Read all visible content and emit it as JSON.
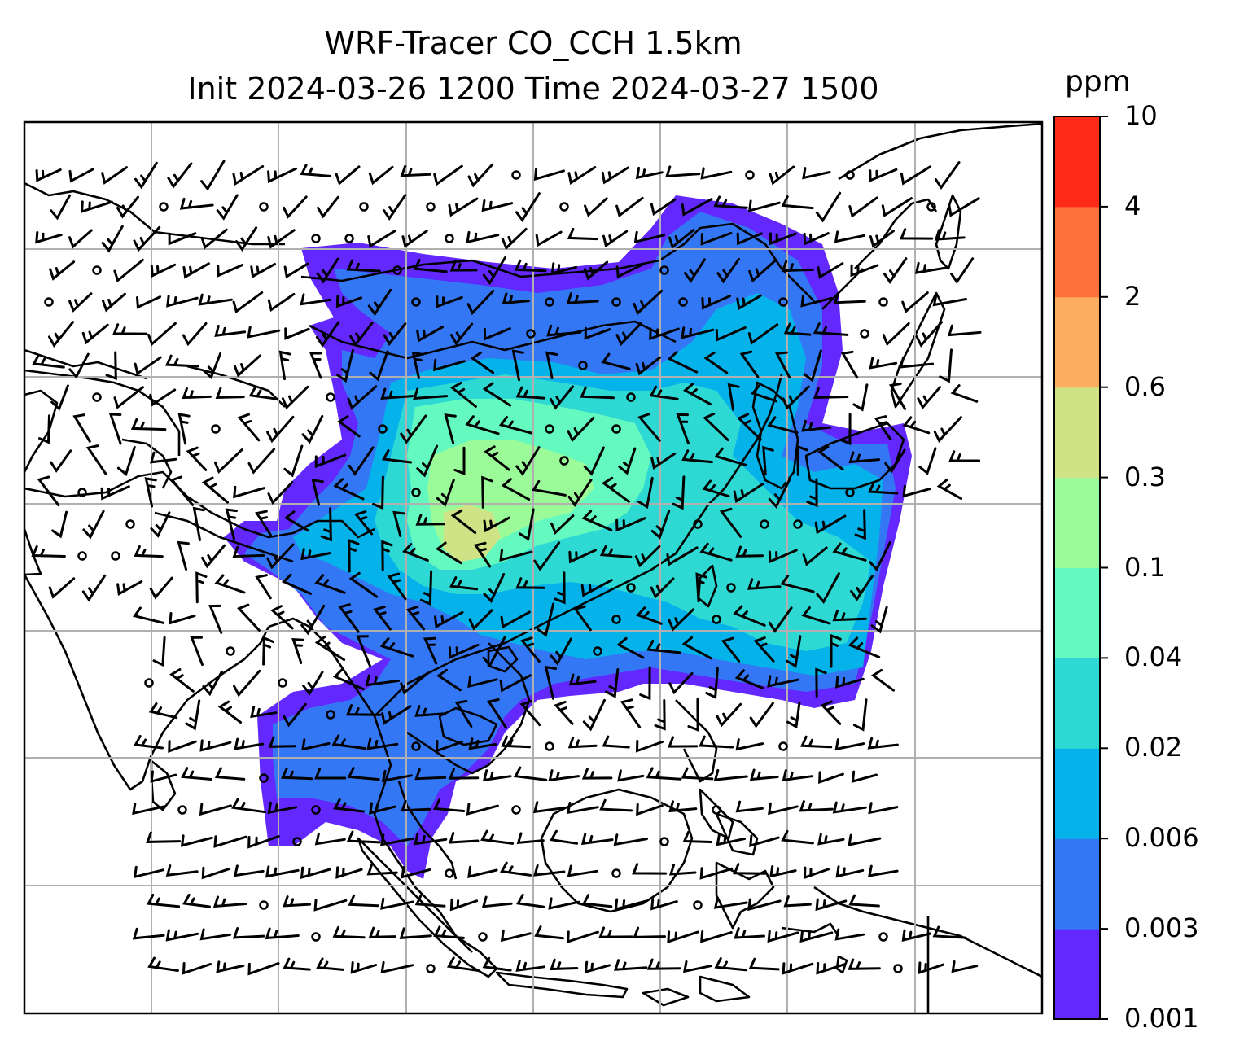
{
  "title": {
    "line1": "WRF-Tracer CO_CCH 1.5km",
    "line2": "Init 2024-03-26 1200 Time 2024-03-27 1500"
  },
  "colorbar": {
    "unit": "ppm",
    "ticks": [
      "0.001",
      "0.003",
      "0.006",
      "0.02",
      "0.04",
      "0.1",
      "0.3",
      "0.6",
      "2",
      "4",
      "10"
    ],
    "colors": [
      "#6328fd",
      "#3477f5",
      "#05b2e9",
      "#2ed9d4",
      "#64f9be",
      "#9bfb99",
      "#cfe285",
      "#fbaf5e",
      "#ff713b",
      "#ff2a18"
    ]
  },
  "map": {
    "projection": "lat-lon",
    "gridlines": true,
    "coastlines": true,
    "wind_barbs": true,
    "shading_variable": "CO_CCH tracer at 1.5km"
  }
}
